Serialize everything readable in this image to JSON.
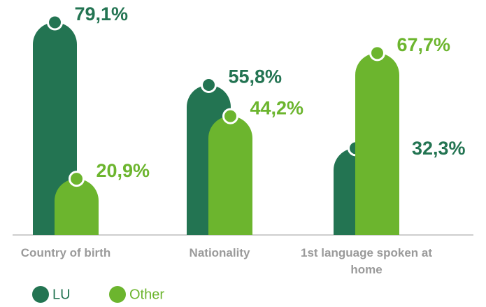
{
  "chart_data": {
    "type": "bar",
    "categories": [
      "Country of birth",
      "Nationality",
      "1st language spoken at home"
    ],
    "series": [
      {
        "name": "LU",
        "color": "#237452",
        "values": [
          79.1,
          55.8,
          32.3
        ],
        "value_labels": [
          "79,1%",
          "55,8%",
          "32,3%"
        ]
      },
      {
        "name": "Other",
        "color": "#6cb52e",
        "values": [
          20.9,
          44.2,
          67.7
        ],
        "value_labels": [
          "20,9%",
          "44,2%",
          "67,7%"
        ]
      }
    ]
  }
}
